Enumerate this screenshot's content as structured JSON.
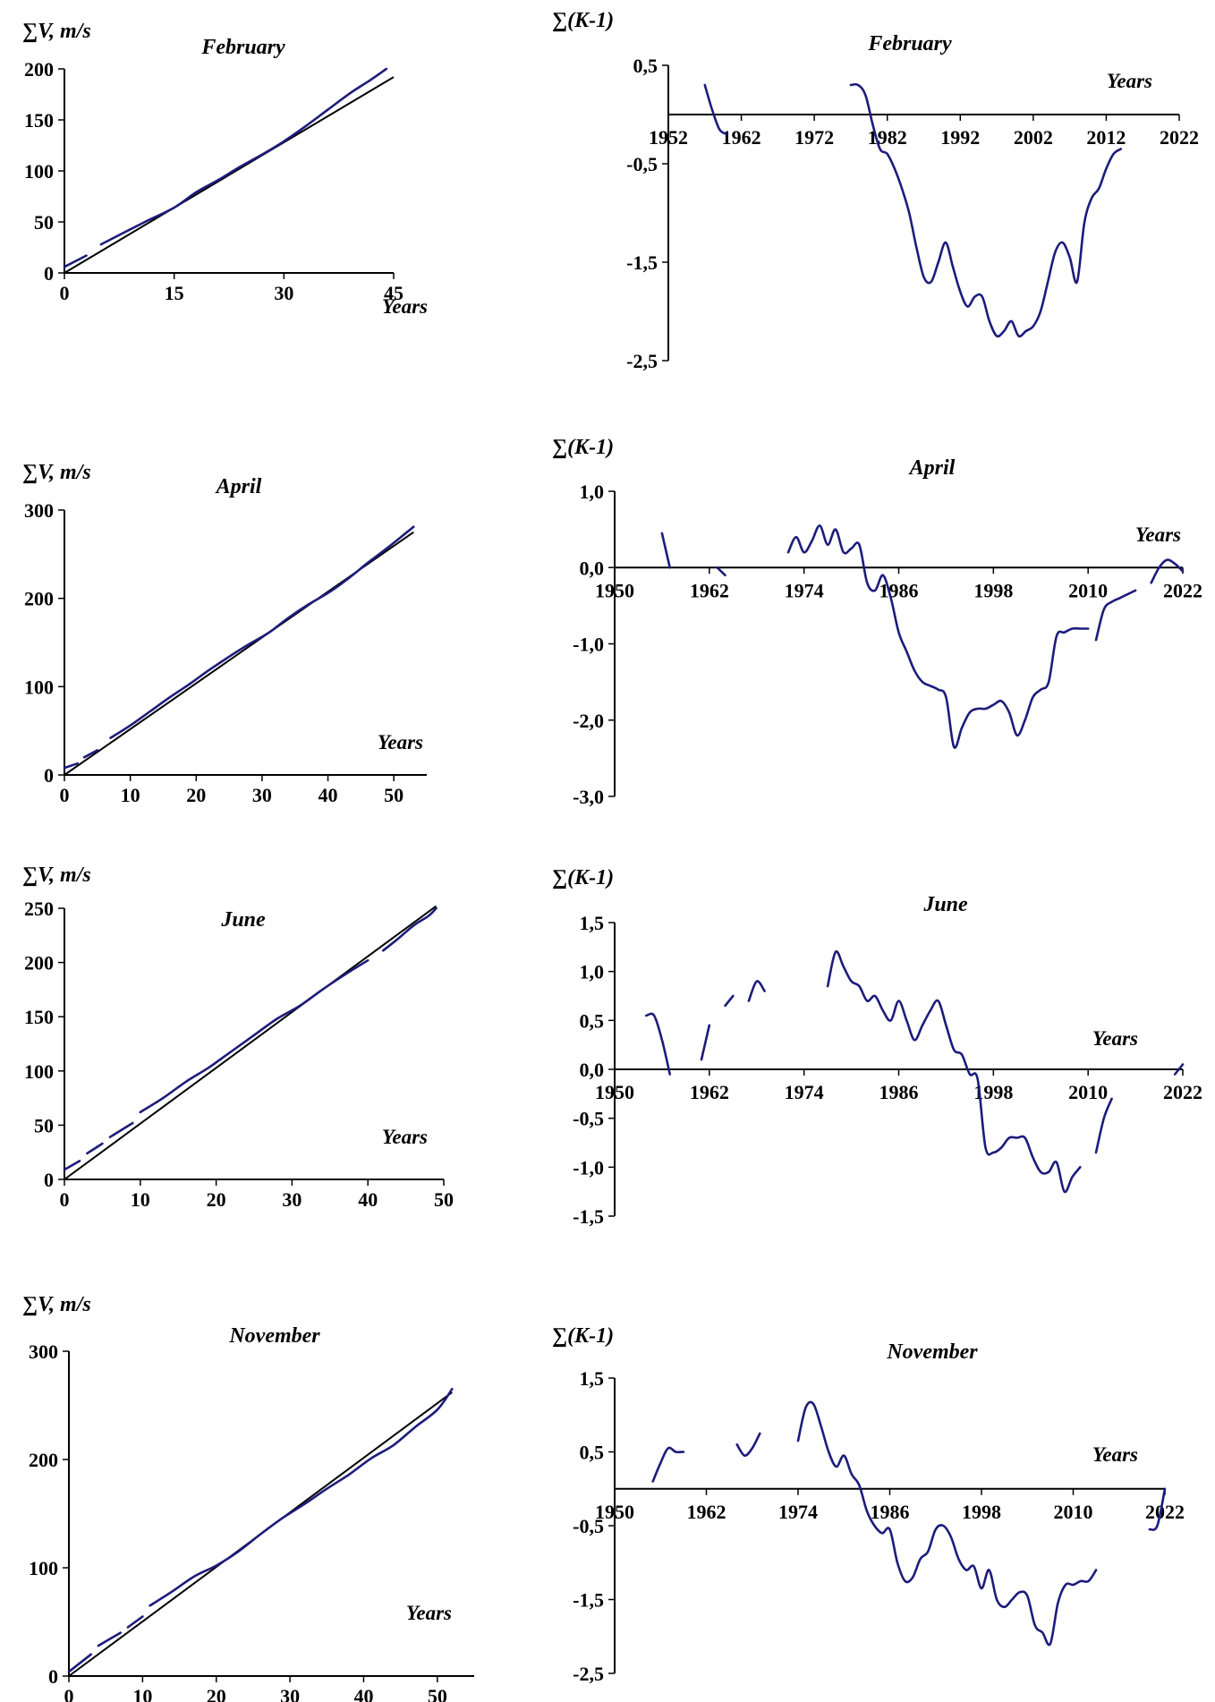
{
  "colors": {
    "series": "#1c1c7c",
    "axis": "#000000",
    "trend": "#000000"
  },
  "chart_data": [
    {
      "type": "line",
      "title": "February",
      "ylabel": "∑V, m/s",
      "xlabel": "Years",
      "xlim": [
        0,
        45
      ],
      "ylim": [
        0,
        200
      ],
      "xticks": [
        "0",
        "15",
        "30",
        "45"
      ],
      "yticks": [
        "0",
        "50",
        "100",
        "150",
        "200"
      ],
      "trend": {
        "x": [
          0,
          45
        ],
        "y": [
          0,
          192
        ]
      },
      "segments": [
        {
          "x": [
            0,
            3
          ],
          "y": [
            6,
            17
          ]
        },
        {
          "x": [
            5,
            8,
            11,
            15,
            18,
            21,
            24,
            27,
            30,
            33,
            36,
            39,
            42,
            44
          ],
          "y": [
            28,
            39,
            50,
            64,
            79,
            91,
            104,
            116,
            129,
            144,
            160,
            176,
            190,
            200
          ]
        }
      ]
    },
    {
      "type": "line",
      "title": "February",
      "ylabel": "∑(K-1)",
      "xlabel": "Years",
      "xlim": [
        1952,
        2022
      ],
      "ylim": [
        -2.5,
        0.5
      ],
      "xticks": [
        "1952",
        "1962",
        "1972",
        "1982",
        "1992",
        "2002",
        "2012",
        "2022"
      ],
      "yticks": [
        "0,5",
        "-0,5",
        "-1,5",
        "-2,5"
      ],
      "xaxis_at": 0,
      "segments": [
        {
          "x": [
            1957,
            1958,
            1959,
            1960
          ],
          "y": [
            0.3,
            0.05,
            -0.15,
            -0.2
          ]
        },
        {
          "x": [
            1977,
            1978,
            1979,
            1980,
            1981,
            1982,
            1983,
            1984,
            1985,
            1986,
            1987,
            1988,
            1989,
            1990,
            1991,
            1992,
            1993,
            1994,
            1995,
            1996,
            1997,
            1998,
            1999,
            2000,
            2001,
            2002,
            2003,
            2004,
            2005,
            2006,
            2007,
            2008,
            2009,
            2010,
            2011,
            2012,
            2013,
            2014
          ],
          "y": [
            0.3,
            0.3,
            0.2,
            -0.1,
            -0.35,
            -0.4,
            -0.55,
            -0.75,
            -1.0,
            -1.35,
            -1.65,
            -1.7,
            -1.5,
            -1.3,
            -1.55,
            -1.8,
            -1.95,
            -1.85,
            -1.85,
            -2.1,
            -2.25,
            -2.2,
            -2.1,
            -2.25,
            -2.2,
            -2.15,
            -2.0,
            -1.7,
            -1.4,
            -1.3,
            -1.45,
            -1.7,
            -1.1,
            -0.85,
            -0.75,
            -0.55,
            -0.4,
            -0.35
          ]
        }
      ]
    },
    {
      "type": "line",
      "title": "April",
      "ylabel": "∑V, m/s",
      "xlabel": "Years",
      "xlim": [
        0,
        55
      ],
      "ylim": [
        0,
        300
      ],
      "xticks": [
        "0",
        "10",
        "20",
        "30",
        "40",
        "50"
      ],
      "yticks": [
        "0",
        "100",
        "200",
        "300"
      ],
      "trend": {
        "x": [
          0,
          53
        ],
        "y": [
          0,
          275
        ]
      },
      "segments": [
        {
          "x": [
            0,
            2
          ],
          "y": [
            8,
            13
          ]
        },
        {
          "x": [
            3,
            5
          ],
          "y": [
            20,
            28
          ]
        },
        {
          "x": [
            7,
            10,
            13,
            16,
            19,
            22,
            25,
            28,
            31,
            34,
            37,
            40,
            43,
            46,
            49,
            52,
            53
          ],
          "y": [
            42,
            56,
            72,
            88,
            103,
            119,
            134,
            148,
            161,
            178,
            193,
            206,
            222,
            240,
            257,
            275,
            281
          ]
        }
      ]
    },
    {
      "type": "line",
      "title": "April",
      "ylabel": "∑(K-1)",
      "xlabel": "Years",
      "xlim": [
        1950,
        2022
      ],
      "ylim": [
        -3.0,
        1.0
      ],
      "xticks": [
        "1950",
        "1962",
        "1974",
        "1986",
        "1998",
        "2010",
        "2022"
      ],
      "yticks": [
        "1,0",
        "0,0",
        "-1,0",
        "-2,0",
        "-3,0"
      ],
      "xaxis_at": 0,
      "segments": [
        {
          "x": [
            1956,
            1957
          ],
          "y": [
            0.45,
            0.0
          ]
        },
        {
          "x": [
            1963,
            1964
          ],
          "y": [
            0.0,
            -0.1
          ]
        },
        {
          "x": [
            1972,
            1973,
            1974,
            1975,
            1976,
            1977,
            1978,
            1979,
            1980,
            1981,
            1982,
            1983,
            1984,
            1985,
            1986,
            1987,
            1988,
            1989,
            1990,
            1991,
            1992,
            1993,
            1994,
            1995,
            1996,
            1997,
            1998,
            1999,
            2000,
            2001,
            2002,
            2003,
            2004,
            2005,
            2006,
            2007,
            2008,
            2009,
            2010
          ],
          "y": [
            0.2,
            0.4,
            0.2,
            0.35,
            0.55,
            0.3,
            0.5,
            0.2,
            0.25,
            0.3,
            -0.2,
            -0.3,
            -0.1,
            -0.4,
            -0.85,
            -1.1,
            -1.35,
            -1.5,
            -1.55,
            -1.6,
            -1.7,
            -2.35,
            -2.1,
            -1.9,
            -1.85,
            -1.85,
            -1.8,
            -1.75,
            -1.9,
            -2.2,
            -2.0,
            -1.7,
            -1.6,
            -1.5,
            -0.9,
            -0.85,
            -0.8,
            -0.8,
            -0.8
          ]
        },
        {
          "x": [
            2011,
            2012,
            2013,
            2014,
            2015,
            2016
          ],
          "y": [
            -0.95,
            -0.55,
            -0.45,
            -0.4,
            -0.35,
            -0.3
          ]
        },
        {
          "x": [
            2018,
            2019,
            2020,
            2021,
            2022
          ],
          "y": [
            -0.2,
            0.0,
            0.1,
            0.05,
            -0.05
          ]
        }
      ]
    },
    {
      "type": "line",
      "title": "June",
      "ylabel": "∑V, m/s",
      "xlabel": "Years",
      "xlim": [
        0,
        50
      ],
      "ylim": [
        0,
        250
      ],
      "xticks": [
        "0",
        "10",
        "20",
        "30",
        "40",
        "50"
      ],
      "yticks": [
        "0",
        "50",
        "100",
        "150",
        "200",
        "250"
      ],
      "trend": {
        "x": [
          0,
          49
        ],
        "y": [
          0,
          252
        ]
      },
      "segments": [
        {
          "x": [
            0,
            2
          ],
          "y": [
            9,
            17
          ]
        },
        {
          "x": [
            3,
            5
          ],
          "y": [
            24,
            33
          ]
        },
        {
          "x": [
            6,
            9
          ],
          "y": [
            39,
            52
          ]
        },
        {
          "x": [
            10,
            13,
            16,
            19,
            22,
            25,
            28,
            31,
            34,
            37,
            40
          ],
          "y": [
            62,
            75,
            90,
            103,
            118,
            133,
            148,
            160,
            175,
            189,
            202
          ]
        },
        {
          "x": [
            42,
            44,
            46,
            48,
            49
          ],
          "y": [
            211,
            222,
            234,
            243,
            250
          ]
        }
      ]
    },
    {
      "type": "line",
      "title": "June",
      "ylabel": "∑(K-1)",
      "xlabel": "Years",
      "xlim": [
        1950,
        2022
      ],
      "ylim": [
        -1.5,
        1.5
      ],
      "xticks": [
        "1950",
        "1962",
        "1974",
        "1986",
        "1998",
        "2010",
        "2022"
      ],
      "yticks": [
        "1,5",
        "1,0",
        "0,5",
        "0,0",
        "-0,5",
        "-1,0",
        "-1,5"
      ],
      "xaxis_at": 0,
      "segments": [
        {
          "x": [
            1954,
            1955,
            1956,
            1957
          ],
          "y": [
            0.55,
            0.55,
            0.3,
            -0.05
          ]
        },
        {
          "x": [
            1961,
            1962
          ],
          "y": [
            0.1,
            0.45
          ]
        },
        {
          "x": [
            1964,
            1965
          ],
          "y": [
            0.65,
            0.75
          ]
        },
        {
          "x": [
            1967,
            1968,
            1969
          ],
          "y": [
            0.7,
            0.9,
            0.8
          ]
        },
        {
          "x": [
            1977,
            1978,
            1979,
            1980,
            1981,
            1982,
            1983,
            1984,
            1985,
            1986,
            1987,
            1988,
            1989,
            1990,
            1991,
            1992,
            1993,
            1994,
            1995,
            1996,
            1997,
            1998,
            1999,
            2000,
            2001,
            2002,
            2003,
            2004,
            2005,
            2006,
            2007,
            2008,
            2009
          ],
          "y": [
            0.85,
            1.2,
            1.05,
            0.9,
            0.85,
            0.7,
            0.75,
            0.6,
            0.5,
            0.7,
            0.5,
            0.3,
            0.45,
            0.6,
            0.7,
            0.45,
            0.2,
            0.15,
            -0.05,
            -0.1,
            -0.8,
            -0.85,
            -0.8,
            -0.7,
            -0.7,
            -0.7,
            -0.9,
            -1.05,
            -1.05,
            -0.95,
            -1.25,
            -1.1,
            -1.0
          ]
        },
        {
          "x": [
            2011,
            2012,
            2013
          ],
          "y": [
            -0.85,
            -0.5,
            -0.3
          ]
        },
        {
          "x": [
            2021,
            2022
          ],
          "y": [
            -0.05,
            0.05
          ]
        }
      ]
    },
    {
      "type": "line",
      "title": "November",
      "ylabel": "∑V, m/s",
      "xlabel": "Years",
      "xlim": [
        0,
        55
      ],
      "ylim": [
        0,
        300
      ],
      "xticks": [
        "0",
        "10",
        "20",
        "30",
        "40",
        "50"
      ],
      "yticks": [
        "0",
        "100",
        "200",
        "300"
      ],
      "trend": {
        "x": [
          0,
          52
        ],
        "y": [
          0,
          262
        ]
      },
      "segments": [
        {
          "x": [
            0,
            3
          ],
          "y": [
            4,
            20
          ]
        },
        {
          "x": [
            4,
            7
          ],
          "y": [
            28,
            40
          ]
        },
        {
          "x": [
            8,
            10
          ],
          "y": [
            45,
            55
          ]
        },
        {
          "x": [
            11,
            14,
            17,
            20,
            23,
            26,
            29,
            32,
            35,
            38,
            41,
            44,
            47,
            50,
            52
          ],
          "y": [
            65,
            78,
            92,
            102,
            115,
            131,
            146,
            159,
            173,
            186,
            201,
            213,
            230,
            246,
            265
          ]
        }
      ]
    },
    {
      "type": "line",
      "title": "November",
      "ylabel": "∑(K-1)",
      "xlabel": "Years",
      "xlim": [
        1950,
        2022
      ],
      "ylim": [
        -2.5,
        1.5
      ],
      "xticks": [
        "1950",
        "1962",
        "1974",
        "1986",
        "1998",
        "2010",
        "2022"
      ],
      "yticks": [
        "1,5",
        "0,5",
        "-0,5",
        "-1,5",
        "-2,5"
      ],
      "xaxis_at": 0,
      "segments": [
        {
          "x": [
            1955,
            1956,
            1957,
            1958,
            1959
          ],
          "y": [
            0.1,
            0.35,
            0.55,
            0.5,
            0.5
          ]
        },
        {
          "x": [
            1966,
            1967,
            1968,
            1969
          ],
          "y": [
            0.6,
            0.45,
            0.55,
            0.75
          ]
        },
        {
          "x": [
            1974,
            1975,
            1976,
            1977,
            1978,
            1979,
            1980,
            1981,
            1982,
            1983,
            1984,
            1985,
            1986,
            1987,
            1988,
            1989,
            1990,
            1991,
            1992,
            1993,
            1994,
            1995,
            1996,
            1997,
            1998,
            1999,
            2000,
            2001,
            2002,
            2003,
            2004,
            2005,
            2006,
            2007,
            2008,
            2009,
            2010,
            2011,
            2012,
            2013
          ],
          "y": [
            0.65,
            1.1,
            1.15,
            0.85,
            0.5,
            0.3,
            0.45,
            0.2,
            0.05,
            -0.3,
            -0.5,
            -0.6,
            -0.55,
            -1.0,
            -1.25,
            -1.2,
            -0.95,
            -0.85,
            -0.55,
            -0.5,
            -0.65,
            -0.95,
            -1.1,
            -1.05,
            -1.35,
            -1.1,
            -1.5,
            -1.6,
            -1.5,
            -1.4,
            -1.45,
            -1.85,
            -1.95,
            -2.1,
            -1.55,
            -1.3,
            -1.3,
            -1.25,
            -1.25,
            -1.1
          ]
        },
        {
          "x": [
            2020,
            2021,
            2022
          ],
          "y": [
            -0.55,
            -0.5,
            0.0
          ]
        }
      ]
    }
  ]
}
